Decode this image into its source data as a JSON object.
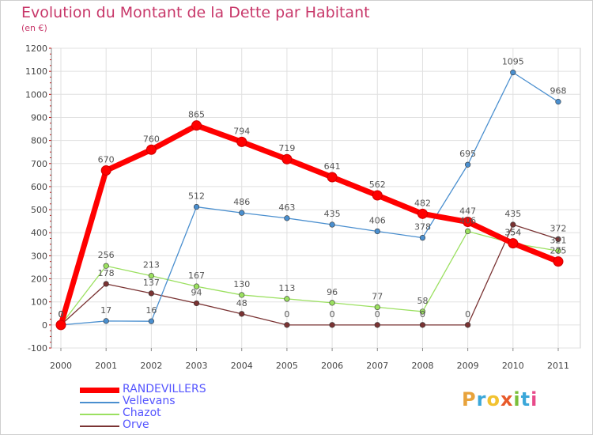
{
  "header": {
    "title": "Evolution du Montant de la Dette par Habitant",
    "unit": "(en €)"
  },
  "logo": {
    "text": "Proxiti",
    "colors": [
      "#e8a33c",
      "#3ba7d9",
      "#f2c230",
      "#e85a2a",
      "#7bbf3a",
      "#3ba7d9",
      "#e84a8a"
    ]
  },
  "chart_data": {
    "type": "line",
    "ylim": [
      -100,
      1200
    ],
    "y_ticks": [
      -100,
      0,
      100,
      200,
      300,
      400,
      500,
      600,
      700,
      800,
      900,
      1000,
      1100,
      1200
    ],
    "categories": [
      "2000",
      "2001",
      "2002",
      "2003",
      "2004",
      "2005",
      "2006",
      "2007",
      "2008",
      "2009",
      "2010",
      "2011"
    ],
    "grid": true,
    "legend_position": "bottom-left",
    "series": [
      {
        "name": "RANDEVILLERS",
        "color": "#ff0000",
        "legend_color": "#ff0000",
        "text_color": "#5555ff",
        "values": [
          0,
          670,
          760,
          865,
          794,
          719,
          641,
          562,
          482,
          447,
          354,
          275
        ],
        "labels": [
          "0",
          "670",
          "760",
          "865",
          "794",
          "719",
          "641",
          "562",
          "482",
          "447",
          "354",
          "275"
        ]
      },
      {
        "name": "Vellevans",
        "color": "#4a8fcf",
        "legend_color": "#4a8fcf",
        "text_color": "#5555ff",
        "values": [
          0,
          17,
          16,
          512,
          486,
          463,
          435,
          406,
          378,
          695,
          1095,
          968
        ],
        "labels": [
          "0",
          "17",
          "16",
          "512",
          "486",
          "463",
          "435",
          "406",
          "378",
          "695",
          "1095",
          "968"
        ]
      },
      {
        "name": "Chazot",
        "color": "#9be060",
        "legend_color": "#9be060",
        "text_color": "#5555ff",
        "values": [
          0,
          256,
          213,
          167,
          130,
          113,
          96,
          77,
          58,
          406,
          354,
          321
        ],
        "labels": [
          "0",
          "256",
          "213",
          "167",
          "130",
          "113",
          "96",
          "77",
          "58",
          "406",
          "354",
          "321"
        ]
      },
      {
        "name": "Orve",
        "color": "#7a3333",
        "legend_color": "#7a3333",
        "text_color": "#5555ff",
        "values": [
          0,
          178,
          137,
          94,
          48,
          0,
          0,
          0,
          0,
          0,
          435,
          372
        ],
        "labels": [
          "0",
          "178",
          "137",
          "94",
          "48",
          "0",
          "0",
          "0",
          "0",
          "0",
          "435",
          "372"
        ]
      }
    ]
  }
}
